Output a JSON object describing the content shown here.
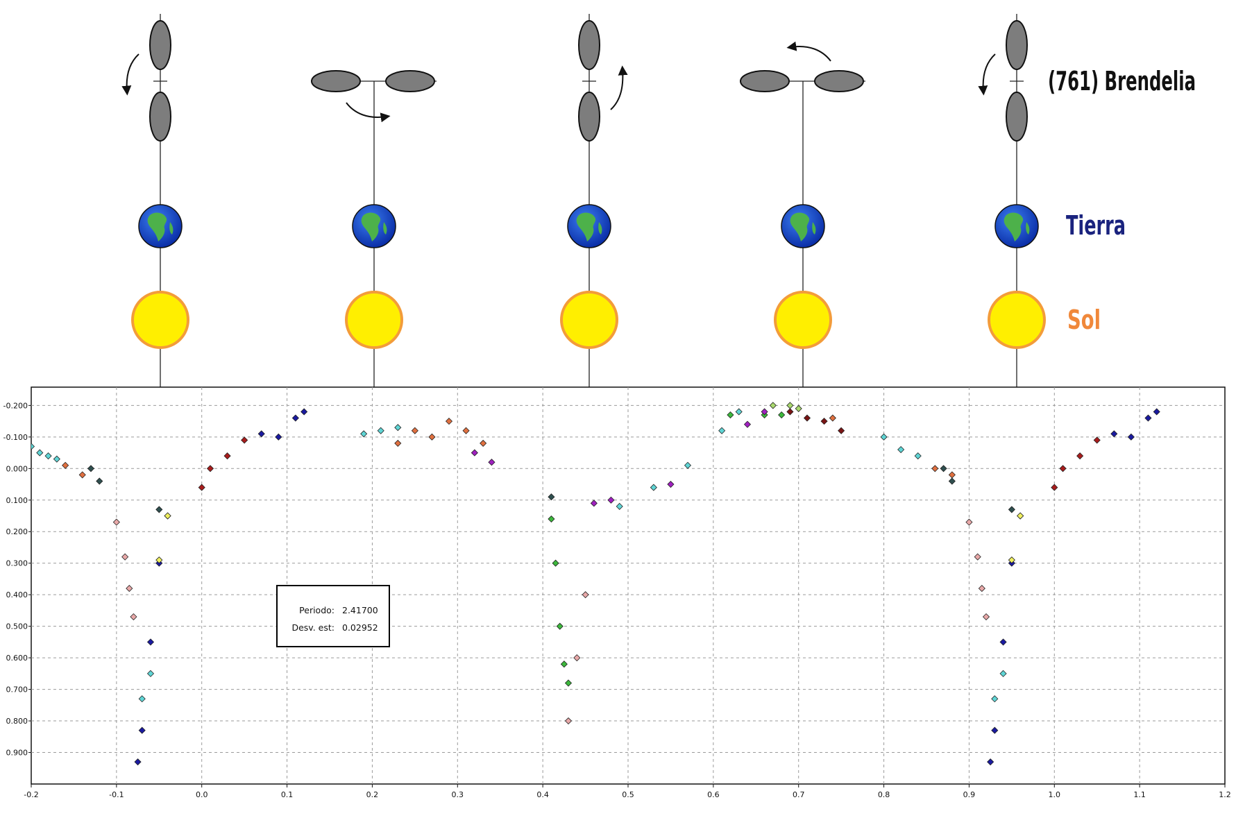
{
  "diagram": {
    "title": "(761) Brendelia",
    "earth_label": "Tierra",
    "sun_label": "Sol",
    "colors": {
      "earth_label": "#1a237e",
      "sun_label": "#f0883a",
      "sun_fill": "#ffef00",
      "sun_ring": "#f39c3a",
      "ellipsoid": "#7d7d7d"
    },
    "geometries": [
      {
        "phase": 0.0,
        "orientation": "vertical",
        "rotation_arrow": "left"
      },
      {
        "phase": 0.25,
        "orientation": "horizontal",
        "rotation_arrow": "down-right"
      },
      {
        "phase": 0.5,
        "orientation": "vertical",
        "rotation_arrow": "up-right"
      },
      {
        "phase": 0.75,
        "orientation": "horizontal",
        "rotation_arrow": "up-left"
      },
      {
        "phase": 1.0,
        "orientation": "vertical",
        "rotation_arrow": "left"
      }
    ]
  },
  "stats": {
    "period_label": "Periodo:",
    "period_value": "2.41700",
    "stdev_label": "Desv. est:",
    "stdev_value": "0.02952"
  },
  "chart_data": {
    "type": "scatter",
    "title": "",
    "xlabel": "",
    "ylabel": "",
    "xlim": [
      -0.2,
      1.2
    ],
    "ylim": [
      1.0,
      -0.2
    ],
    "y_inverted": true,
    "grid": true,
    "x_ticks": [
      -0.2,
      -0.1,
      0.0,
      0.1,
      0.2,
      0.3,
      0.4,
      0.5,
      0.6,
      0.7,
      0.8,
      0.9,
      1.0,
      1.1,
      1.2
    ],
    "x_tick_labels": [
      "-0.2",
      "-0.1",
      "0.0",
      "0.1",
      "0.2",
      "0.3",
      "0.4",
      "0.5",
      "0.6",
      "0.7",
      "0.8",
      "0.9",
      "1.0",
      "1.1",
      "1.2"
    ],
    "y_ticks": [
      -0.2,
      -0.1,
      0.0,
      0.1,
      0.2,
      0.3,
      0.4,
      0.5,
      0.6,
      0.7,
      0.8,
      0.9
    ],
    "y_tick_labels": [
      "-0.200",
      "-0.100",
      "0.000",
      "0.100",
      "0.200",
      "0.300",
      "0.400",
      "0.500",
      "0.600",
      "0.700",
      "0.800",
      "0.900"
    ],
    "series": [
      {
        "color": "#5fd5d5",
        "points": [
          [
            -0.2,
            -0.07
          ],
          [
            -0.19,
            -0.05
          ],
          [
            -0.18,
            -0.04
          ],
          [
            -0.17,
            -0.03
          ],
          [
            0.19,
            -0.11
          ],
          [
            0.21,
            -0.12
          ],
          [
            0.23,
            -0.13
          ],
          [
            0.49,
            0.12
          ],
          [
            0.53,
            0.06
          ],
          [
            0.57,
            -0.01
          ],
          [
            0.61,
            -0.12
          ],
          [
            0.63,
            -0.18
          ],
          [
            0.8,
            -0.1
          ],
          [
            0.82,
            -0.06
          ],
          [
            0.84,
            -0.04
          ],
          [
            -0.07,
            0.73
          ],
          [
            -0.06,
            0.65
          ],
          [
            -0.04,
            0.15
          ],
          [
            0.93,
            0.73
          ],
          [
            0.94,
            0.65
          ],
          [
            0.96,
            0.15
          ]
        ]
      },
      {
        "color": "#e07040",
        "points": [
          [
            -0.16,
            -0.01
          ],
          [
            -0.14,
            0.02
          ],
          [
            0.23,
            -0.08
          ],
          [
            0.25,
            -0.12
          ],
          [
            0.27,
            -0.1
          ],
          [
            0.29,
            -0.15
          ],
          [
            0.31,
            -0.12
          ],
          [
            0.33,
            -0.08
          ],
          [
            0.74,
            -0.16
          ],
          [
            0.86,
            0.0
          ],
          [
            0.88,
            0.02
          ]
        ]
      },
      {
        "color": "#2f4f4f",
        "points": [
          [
            -0.13,
            0.0
          ],
          [
            -0.12,
            0.04
          ],
          [
            -0.05,
            0.13
          ],
          [
            0.41,
            0.09
          ],
          [
            0.87,
            0.0
          ],
          [
            0.88,
            0.04
          ],
          [
            0.95,
            0.13
          ]
        ]
      },
      {
        "color": "#e8a8a8",
        "points": [
          [
            -0.1,
            0.17
          ],
          [
            -0.09,
            0.28
          ],
          [
            -0.085,
            0.38
          ],
          [
            -0.08,
            0.47
          ],
          [
            0.43,
            0.8
          ],
          [
            0.44,
            0.6
          ],
          [
            0.45,
            0.4
          ],
          [
            0.9,
            0.17
          ],
          [
            0.91,
            0.28
          ],
          [
            0.915,
            0.38
          ],
          [
            0.92,
            0.47
          ]
        ]
      },
      {
        "color": "#1a1aa0",
        "points": [
          [
            -0.075,
            0.93
          ],
          [
            -0.07,
            0.83
          ],
          [
            -0.06,
            0.55
          ],
          [
            -0.05,
            0.3
          ],
          [
            0.07,
            -0.11
          ],
          [
            0.09,
            -0.1
          ],
          [
            0.11,
            -0.16
          ],
          [
            0.12,
            -0.18
          ],
          [
            0.925,
            0.93
          ],
          [
            0.93,
            0.83
          ],
          [
            0.94,
            0.55
          ],
          [
            0.95,
            0.3
          ],
          [
            1.07,
            -0.11
          ],
          [
            1.09,
            -0.1
          ],
          [
            1.11,
            -0.16
          ],
          [
            1.12,
            -0.18
          ]
        ]
      },
      {
        "color": "#a81c1c",
        "points": [
          [
            0.0,
            0.06
          ],
          [
            0.01,
            0.0
          ],
          [
            0.03,
            -0.04
          ],
          [
            0.05,
            -0.09
          ],
          [
            1.0,
            0.06
          ],
          [
            1.01,
            0.0
          ],
          [
            1.03,
            -0.04
          ],
          [
            1.05,
            -0.09
          ]
        ]
      },
      {
        "color": "#3cb83c",
        "points": [
          [
            0.41,
            0.16
          ],
          [
            0.415,
            0.3
          ],
          [
            0.42,
            0.5
          ],
          [
            0.425,
            0.62
          ],
          [
            0.43,
            0.68
          ],
          [
            0.62,
            -0.17
          ],
          [
            0.66,
            -0.17
          ],
          [
            0.68,
            -0.17
          ]
        ]
      },
      {
        "color": "#a020c0",
        "points": [
          [
            0.32,
            -0.05
          ],
          [
            0.34,
            -0.02
          ],
          [
            0.46,
            0.11
          ],
          [
            0.48,
            0.1
          ],
          [
            0.55,
            0.05
          ],
          [
            0.64,
            -0.14
          ],
          [
            0.66,
            -0.18
          ]
        ]
      },
      {
        "color": "#7a1414",
        "points": [
          [
            0.69,
            -0.18
          ],
          [
            0.71,
            -0.16
          ],
          [
            0.73,
            -0.15
          ],
          [
            0.75,
            -0.12
          ]
        ]
      },
      {
        "color": "#f0f060",
        "points": [
          [
            -0.05,
            0.29
          ],
          [
            -0.04,
            0.15
          ],
          [
            0.95,
            0.29
          ],
          [
            0.96,
            0.15
          ]
        ]
      },
      {
        "color": "#a9d86e",
        "points": [
          [
            0.67,
            -0.2
          ],
          [
            0.69,
            -0.2
          ],
          [
            0.7,
            -0.19
          ]
        ]
      }
    ]
  }
}
